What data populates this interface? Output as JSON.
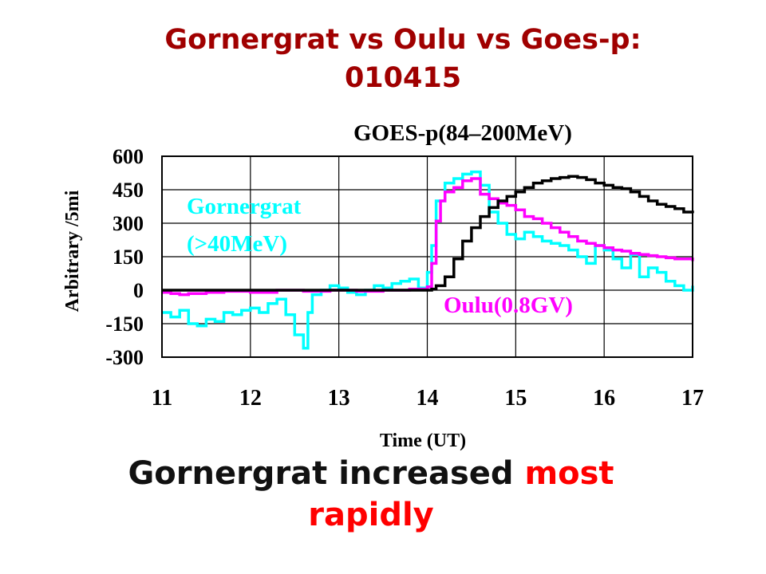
{
  "slide": {
    "title_line1": "Gornergrat vs Oulu vs Goes-p:",
    "title_line2": "010415",
    "note_prefix": "Gornergrat increased ",
    "note_highlight_1": "most",
    "note_highlight_2": "rapidly"
  },
  "chart_data": {
    "type": "line",
    "xlabel": "Time (UT)",
    "ylabel": "Arbitrary /5mi",
    "x_ticks": [
      "11",
      "12",
      "13",
      "14",
      "15",
      "16",
      "17"
    ],
    "y_ticks": [
      "600",
      "450",
      "300",
      "150",
      "0",
      "-150",
      "-300"
    ],
    "xlim": [
      11,
      17
    ],
    "ylim": [
      -300,
      600
    ],
    "grid": true,
    "labels": {
      "goes": "GOES-p(84–200MeV)",
      "gornergrat_line1": "Gornergrat",
      "gornergrat_line2": "(>40MeV)",
      "oulu": "Oulu(0.8GV)"
    },
    "colors": {
      "goes": "#000000",
      "oulu": "#ff00ff",
      "gornergrat": "#00ffff",
      "axis": "#000000",
      "grid": "#000000"
    },
    "series": [
      {
        "name": "GOES-p(84–200MeV)",
        "color": "#000000",
        "x": [
          11,
          14.0,
          14.05,
          14.1,
          14.2,
          14.3,
          14.4,
          14.5,
          14.6,
          14.7,
          14.8,
          14.9,
          15.0,
          15.1,
          15.2,
          15.3,
          15.4,
          15.5,
          15.6,
          15.7,
          15.8,
          15.9,
          16.0,
          16.1,
          16.2,
          16.3,
          16.4,
          16.5,
          16.6,
          16.7,
          16.8,
          16.9,
          17.0
        ],
        "y": [
          0,
          0,
          5,
          20,
          60,
          140,
          220,
          280,
          330,
          370,
          400,
          420,
          440,
          460,
          480,
          490,
          500,
          505,
          510,
          505,
          495,
          480,
          470,
          460,
          455,
          440,
          420,
          400,
          385,
          375,
          365,
          350,
          345
        ]
      },
      {
        "name": "Oulu(0.8GV)",
        "color": "#ff00ff",
        "x": [
          11,
          11.1,
          11.2,
          11.3,
          11.5,
          11.7,
          12.0,
          12.3,
          12.6,
          12.9,
          13.2,
          13.5,
          13.8,
          14.0,
          14.05,
          14.1,
          14.15,
          14.2,
          14.3,
          14.4,
          14.5,
          14.6,
          14.7,
          14.8,
          14.9,
          15.0,
          15.1,
          15.2,
          15.3,
          15.4,
          15.5,
          15.6,
          15.7,
          15.8,
          15.9,
          16.0,
          16.1,
          16.2,
          16.3,
          16.4,
          16.5,
          16.6,
          16.7,
          16.8,
          16.9,
          17.0
        ],
        "y": [
          -10,
          -15,
          -20,
          -15,
          -10,
          -5,
          -10,
          0,
          -5,
          0,
          -5,
          0,
          5,
          15,
          120,
          310,
          400,
          440,
          460,
          490,
          500,
          430,
          410,
          390,
          380,
          360,
          330,
          320,
          300,
          280,
          260,
          240,
          220,
          210,
          200,
          190,
          180,
          175,
          165,
          160,
          155,
          150,
          145,
          140,
          140,
          130
        ]
      },
      {
        "name": "Gornergrat(>40MeV)",
        "color": "#00ffff",
        "x": [
          11,
          11.1,
          11.2,
          11.3,
          11.4,
          11.5,
          11.6,
          11.7,
          11.8,
          11.9,
          12.0,
          12.1,
          12.2,
          12.3,
          12.4,
          12.5,
          12.6,
          12.65,
          12.7,
          12.8,
          12.9,
          13.0,
          13.1,
          13.2,
          13.3,
          13.4,
          13.5,
          13.6,
          13.7,
          13.8,
          13.9,
          14.0,
          14.05,
          14.1,
          14.2,
          14.3,
          14.4,
          14.5,
          14.6,
          14.7,
          14.8,
          14.9,
          15.0,
          15.1,
          15.2,
          15.3,
          15.4,
          15.5,
          15.6,
          15.7,
          15.8,
          15.9,
          16.0,
          16.1,
          16.2,
          16.3,
          16.4,
          16.5,
          16.6,
          16.7,
          16.8,
          16.9,
          17.0
        ],
        "y": [
          -100,
          -120,
          -90,
          -150,
          -160,
          -130,
          -140,
          -100,
          -110,
          -90,
          -80,
          -100,
          -60,
          -40,
          -110,
          -200,
          -260,
          -100,
          -20,
          0,
          20,
          10,
          -10,
          -20,
          0,
          20,
          10,
          30,
          40,
          50,
          10,
          80,
          200,
          400,
          480,
          500,
          520,
          530,
          470,
          350,
          300,
          250,
          230,
          260,
          240,
          220,
          210,
          200,
          180,
          150,
          120,
          200,
          180,
          140,
          100,
          160,
          60,
          100,
          80,
          40,
          20,
          0,
          20
        ]
      }
    ]
  }
}
